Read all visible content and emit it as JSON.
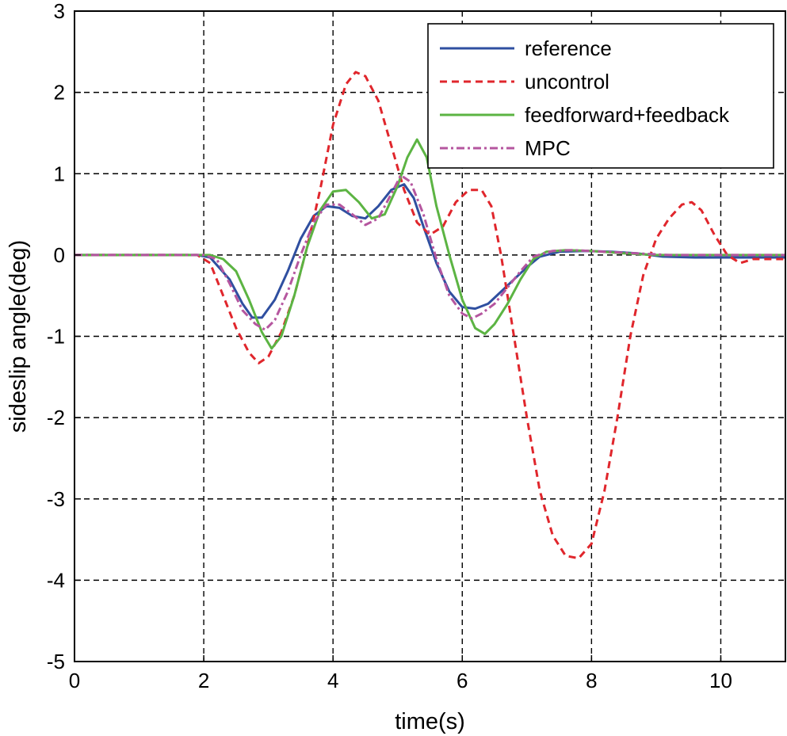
{
  "chart_data": {
    "type": "line",
    "title": "",
    "xlabel": "time(s)",
    "ylabel": "sideslip angle(deg)",
    "xlim": [
      0,
      11
    ],
    "ylim": [
      -5,
      3
    ],
    "xticks": [
      0,
      2,
      4,
      6,
      8,
      10
    ],
    "yticks": [
      -5,
      -4,
      -3,
      -2,
      -1,
      0,
      1,
      2,
      3
    ],
    "xtick_labels": [
      "0",
      "2",
      "4",
      "6",
      "8",
      "10"
    ],
    "ytick_labels": [
      "-5",
      "-4",
      "-3",
      "-2",
      "-1",
      "0",
      "1",
      "2",
      "3"
    ],
    "grid": true,
    "grid_style": "dashed",
    "legend_position": "top-right",
    "series": [
      {
        "name": "reference",
        "color": "#2f4fa0",
        "dash": "solid",
        "points": [
          [
            0,
            0
          ],
          [
            1.9,
            0
          ],
          [
            2.1,
            -0.03
          ],
          [
            2.4,
            -0.3
          ],
          [
            2.6,
            -0.6
          ],
          [
            2.75,
            -0.77
          ],
          [
            2.9,
            -0.77
          ],
          [
            3.1,
            -0.55
          ],
          [
            3.3,
            -0.2
          ],
          [
            3.5,
            0.2
          ],
          [
            3.7,
            0.48
          ],
          [
            3.9,
            0.6
          ],
          [
            4.1,
            0.58
          ],
          [
            4.3,
            0.48
          ],
          [
            4.5,
            0.45
          ],
          [
            4.7,
            0.6
          ],
          [
            4.9,
            0.8
          ],
          [
            5.1,
            0.87
          ],
          [
            5.25,
            0.7
          ],
          [
            5.4,
            0.35
          ],
          [
            5.6,
            -0.1
          ],
          [
            5.8,
            -0.45
          ],
          [
            6.0,
            -0.64
          ],
          [
            6.2,
            -0.66
          ],
          [
            6.4,
            -0.6
          ],
          [
            6.6,
            -0.45
          ],
          [
            6.8,
            -0.3
          ],
          [
            7.0,
            -0.15
          ],
          [
            7.2,
            -0.02
          ],
          [
            7.5,
            0.04
          ],
          [
            7.9,
            0.05
          ],
          [
            8.3,
            0.04
          ],
          [
            8.7,
            0.02
          ],
          [
            9.1,
            -0.02
          ],
          [
            9.6,
            -0.03
          ],
          [
            10.5,
            -0.03
          ],
          [
            11,
            -0.03
          ]
        ]
      },
      {
        "name": "uncontrol",
        "color": "#e0262c",
        "dash": "dashed",
        "points": [
          [
            0,
            0
          ],
          [
            1.9,
            0
          ],
          [
            2.1,
            -0.1
          ],
          [
            2.3,
            -0.5
          ],
          [
            2.5,
            -0.9
          ],
          [
            2.7,
            -1.2
          ],
          [
            2.85,
            -1.33
          ],
          [
            3.0,
            -1.25
          ],
          [
            3.2,
            -0.95
          ],
          [
            3.4,
            -0.5
          ],
          [
            3.6,
            0.1
          ],
          [
            3.8,
            0.8
          ],
          [
            4.0,
            1.6
          ],
          [
            4.2,
            2.1
          ],
          [
            4.35,
            2.25
          ],
          [
            4.5,
            2.2
          ],
          [
            4.7,
            1.9
          ],
          [
            4.9,
            1.35
          ],
          [
            5.1,
            0.8
          ],
          [
            5.3,
            0.4
          ],
          [
            5.5,
            0.25
          ],
          [
            5.7,
            0.35
          ],
          [
            5.9,
            0.65
          ],
          [
            6.1,
            0.8
          ],
          [
            6.3,
            0.8
          ],
          [
            6.45,
            0.6
          ],
          [
            6.6,
            0.0
          ],
          [
            6.8,
            -1.0
          ],
          [
            7.0,
            -2.0
          ],
          [
            7.2,
            -2.9
          ],
          [
            7.4,
            -3.45
          ],
          [
            7.6,
            -3.7
          ],
          [
            7.8,
            -3.73
          ],
          [
            8.0,
            -3.55
          ],
          [
            8.2,
            -2.9
          ],
          [
            8.4,
            -2.0
          ],
          [
            8.6,
            -1.0
          ],
          [
            8.8,
            -0.25
          ],
          [
            9.0,
            0.2
          ],
          [
            9.2,
            0.45
          ],
          [
            9.4,
            0.62
          ],
          [
            9.55,
            0.65
          ],
          [
            9.7,
            0.55
          ],
          [
            9.9,
            0.25
          ],
          [
            10.1,
            0.0
          ],
          [
            10.3,
            -0.1
          ],
          [
            10.5,
            -0.05
          ],
          [
            10.7,
            -0.05
          ],
          [
            11,
            -0.05
          ]
        ]
      },
      {
        "name": "feedforward+feedback",
        "color": "#5cb443",
        "dash": "solid",
        "points": [
          [
            0,
            0
          ],
          [
            2.1,
            0
          ],
          [
            2.3,
            -0.05
          ],
          [
            2.5,
            -0.2
          ],
          [
            2.7,
            -0.55
          ],
          [
            2.9,
            -0.95
          ],
          [
            3.05,
            -1.15
          ],
          [
            3.2,
            -1.0
          ],
          [
            3.4,
            -0.5
          ],
          [
            3.6,
            0.1
          ],
          [
            3.8,
            0.55
          ],
          [
            4.0,
            0.78
          ],
          [
            4.2,
            0.8
          ],
          [
            4.4,
            0.65
          ],
          [
            4.6,
            0.45
          ],
          [
            4.8,
            0.5
          ],
          [
            5.0,
            0.85
          ],
          [
            5.15,
            1.2
          ],
          [
            5.3,
            1.42
          ],
          [
            5.45,
            1.2
          ],
          [
            5.6,
            0.6
          ],
          [
            5.8,
            0.0
          ],
          [
            6.0,
            -0.55
          ],
          [
            6.2,
            -0.9
          ],
          [
            6.35,
            -0.97
          ],
          [
            6.5,
            -0.85
          ],
          [
            6.7,
            -0.6
          ],
          [
            6.9,
            -0.3
          ],
          [
            7.1,
            -0.05
          ],
          [
            7.3,
            0.04
          ],
          [
            7.6,
            0.06
          ],
          [
            8.0,
            0.05
          ],
          [
            8.5,
            0.02
          ],
          [
            9.0,
            0.0
          ],
          [
            11,
            0.0
          ]
        ]
      },
      {
        "name": "MPC",
        "color": "#b5569f",
        "dash": "dashdot",
        "points": [
          [
            0,
            0
          ],
          [
            2.0,
            0
          ],
          [
            2.2,
            -0.05
          ],
          [
            2.4,
            -0.35
          ],
          [
            2.6,
            -0.68
          ],
          [
            2.8,
            -0.85
          ],
          [
            2.95,
            -0.92
          ],
          [
            3.1,
            -0.8
          ],
          [
            3.3,
            -0.45
          ],
          [
            3.5,
            0.0
          ],
          [
            3.7,
            0.4
          ],
          [
            3.9,
            0.62
          ],
          [
            4.1,
            0.62
          ],
          [
            4.3,
            0.5
          ],
          [
            4.5,
            0.37
          ],
          [
            4.7,
            0.45
          ],
          [
            4.9,
            0.75
          ],
          [
            5.05,
            0.98
          ],
          [
            5.2,
            0.9
          ],
          [
            5.4,
            0.5
          ],
          [
            5.6,
            -0.05
          ],
          [
            5.8,
            -0.5
          ],
          [
            6.0,
            -0.72
          ],
          [
            6.15,
            -0.78
          ],
          [
            6.3,
            -0.72
          ],
          [
            6.5,
            -0.6
          ],
          [
            6.7,
            -0.4
          ],
          [
            6.9,
            -0.2
          ],
          [
            7.1,
            -0.02
          ],
          [
            7.4,
            0.05
          ],
          [
            7.7,
            0.06
          ],
          [
            8.2,
            0.04
          ],
          [
            8.7,
            0.02
          ],
          [
            9.2,
            0.0
          ],
          [
            11,
            0.0
          ]
        ]
      }
    ]
  }
}
